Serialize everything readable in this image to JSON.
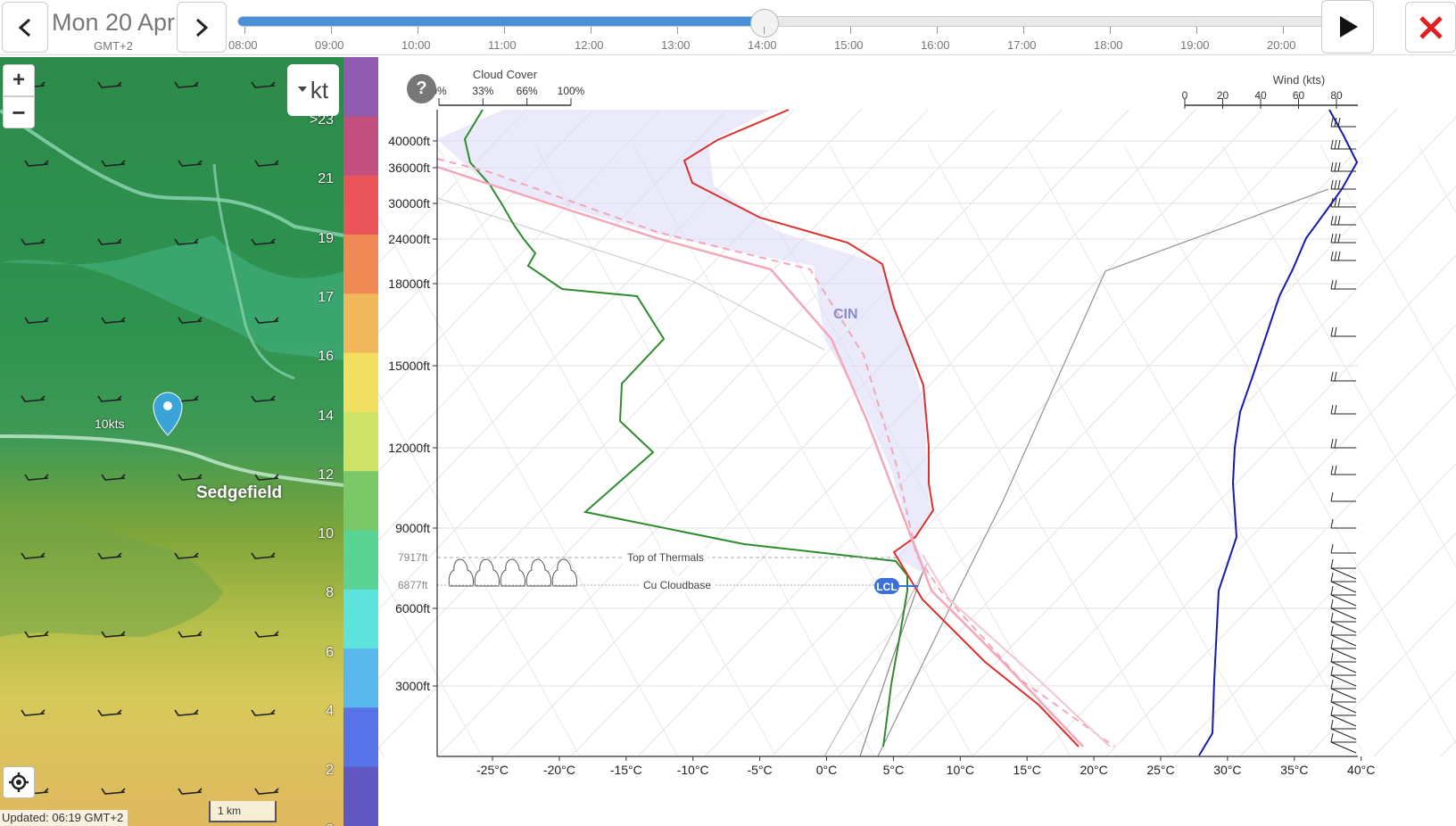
{
  "header": {
    "date": "Mon 20 Apr",
    "timezone": "GMT+2",
    "times": [
      "08:00",
      "09:00",
      "10:00",
      "11:00",
      "12:00",
      "13:00",
      "14:00",
      "15:00",
      "16:00",
      "17:00",
      "18:00",
      "19:00",
      "20:00"
    ],
    "selected_time": "14:00",
    "icons": {
      "prev": "chevron-left-icon",
      "next": "chevron-right-icon",
      "play": "play-icon",
      "close": "close-icon"
    }
  },
  "map": {
    "zoom_in_label": "+",
    "zoom_out_label": "−",
    "unit_label": "kt",
    "speed_label": "10kts",
    "place_label": "Sedgefield",
    "updated": "Updated: 06:19 GMT+2",
    "scale": "1 km",
    "legend": [
      ">23",
      "21",
      "19",
      "17",
      "16",
      "14",
      "12",
      "10",
      "8",
      "6",
      "4",
      "2",
      "0"
    ],
    "legend_colors": [
      "#8f5bb0",
      "#c2507e",
      "#e9555a",
      "#ef8a55",
      "#f0b85a",
      "#f3e063",
      "#cde266",
      "#7ac868",
      "#5bd395",
      "#5ee3dd",
      "#5ab7ec",
      "#5773e8",
      "#6058c0"
    ]
  },
  "skewt": {
    "cloud_cover_title": "Cloud Cover",
    "cloud_cover_ticks": [
      "0%",
      "33%",
      "66%",
      "100%"
    ],
    "wind_title": "Wind (kts)",
    "wind_ticks": [
      "0",
      "20",
      "40",
      "60",
      "80"
    ],
    "altitudes": [
      "40000ft",
      "36000ft",
      "30000ft",
      "24000ft",
      "18000ft",
      "15000ft",
      "12000ft",
      "9000ft",
      "6000ft",
      "3000ft"
    ],
    "temps": [
      "-25°C",
      "-20°C",
      "-15°C",
      "-10°C",
      "-5°C",
      "0°C",
      "5°C",
      "10°C",
      "15°C",
      "20°C",
      "25°C",
      "30°C",
      "35°C",
      "40°C"
    ],
    "thermal_top_alt": "7917ft",
    "thermal_top_label": "Top of Thermals",
    "cloudbase_alt": "6877ft",
    "cloudbase_label": "Cu Cloudbase",
    "lcl_label": "LCL",
    "cin_label": "CIN",
    "help_label": "?"
  }
}
